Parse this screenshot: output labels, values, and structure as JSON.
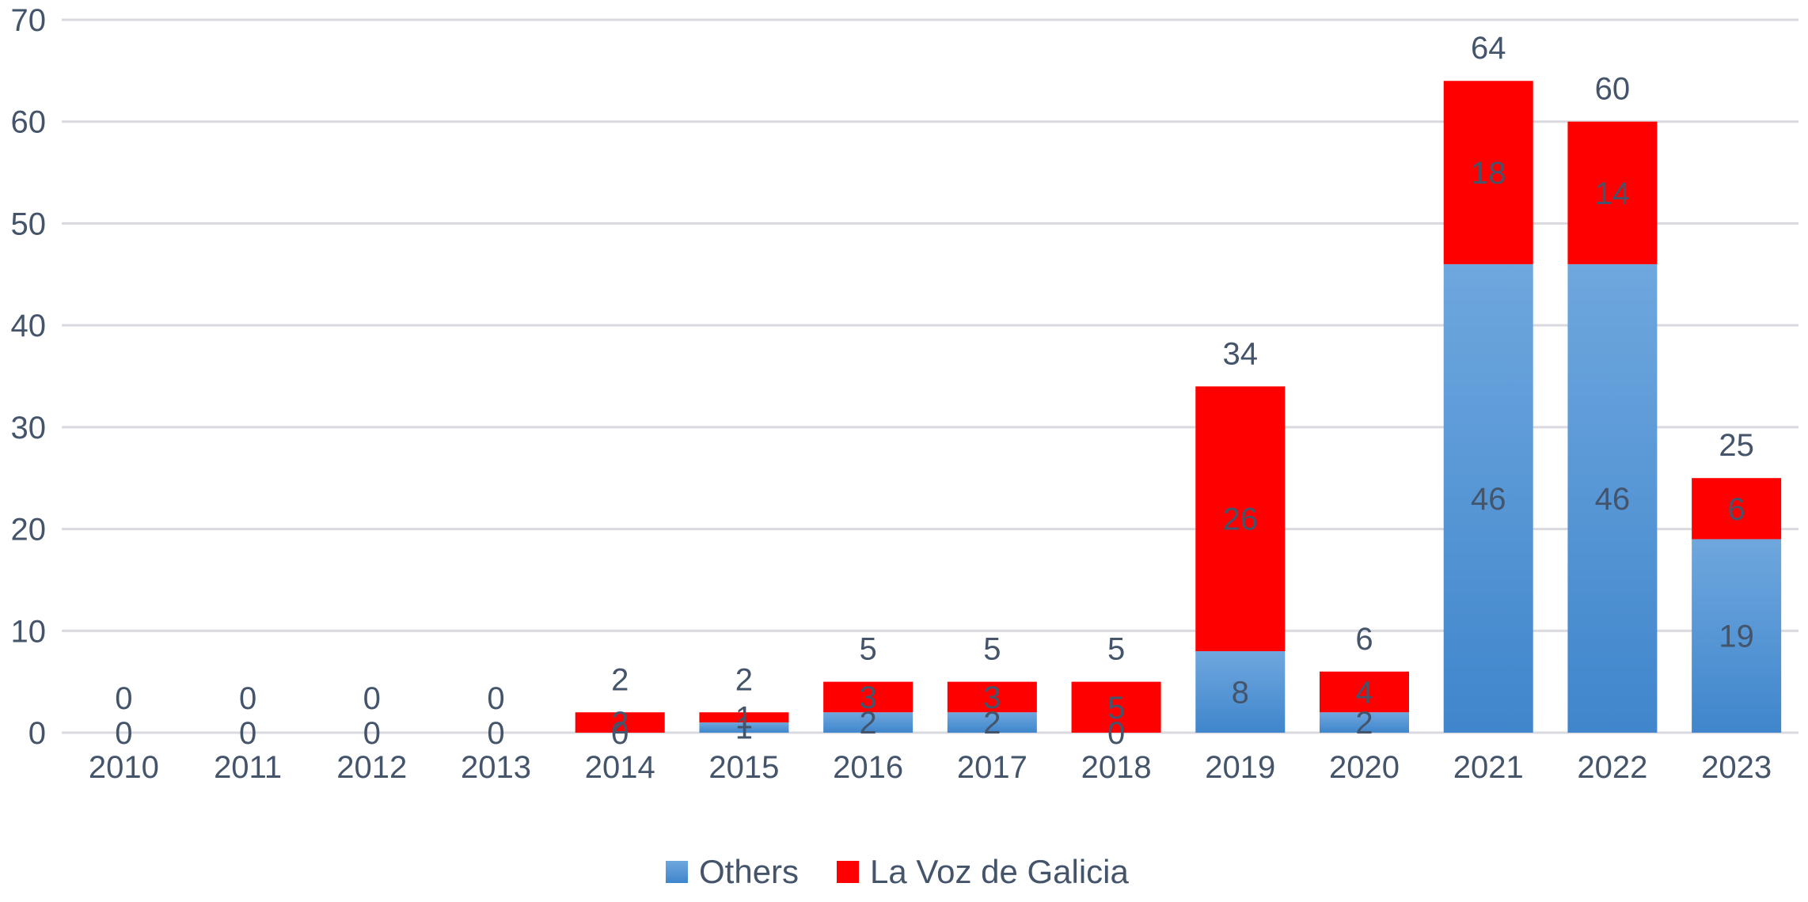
{
  "chart_data": {
    "type": "bar",
    "stacked": true,
    "categories": [
      "2010",
      "2011",
      "2012",
      "2013",
      "2014",
      "2015",
      "2016",
      "2017",
      "2018",
      "2019",
      "2020",
      "2021",
      "2022",
      "2023"
    ],
    "series": [
      {
        "name": "Others",
        "color": "#4a8fd6",
        "values": [
          0,
          0,
          0,
          0,
          0,
          1,
          2,
          2,
          0,
          8,
          2,
          46,
          46,
          19
        ]
      },
      {
        "name": "La Voz de Galicia",
        "color": "#ff0000",
        "values": [
          0,
          0,
          0,
          0,
          2,
          1,
          3,
          3,
          5,
          26,
          4,
          18,
          14,
          6
        ]
      }
    ],
    "totals": [
      0,
      0,
      0,
      0,
      2,
      2,
      5,
      5,
      5,
      34,
      6,
      64,
      60,
      25
    ],
    "ylim": [
      0,
      70
    ],
    "yticks": [
      0,
      10,
      20,
      30,
      40,
      50,
      60,
      70
    ],
    "grid": true,
    "legend_position": "bottom",
    "title": "",
    "xlabel": "",
    "ylabel": ""
  }
}
